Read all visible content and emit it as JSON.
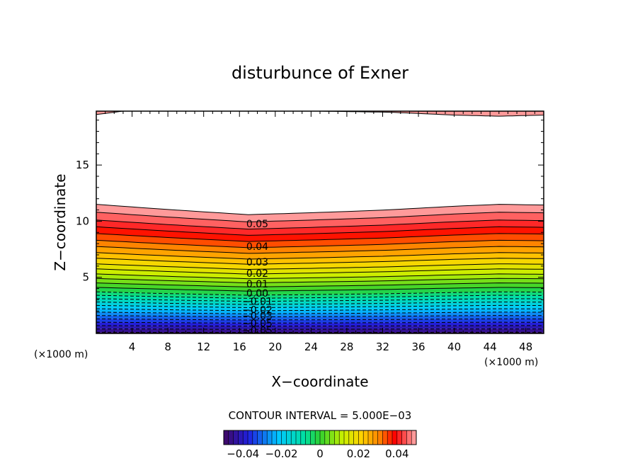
{
  "chart_data": {
    "type": "contour",
    "title": "disturbunce of Exner",
    "xlabel": "X−coordinate",
    "ylabel": "Z−coordinate",
    "x_unit_label": "(×1000 m)",
    "x_unit_label_right": "(×1000 m)",
    "xlim": [
      0,
      50
    ],
    "ylim": [
      0,
      19.8
    ],
    "x_ticks": [
      4,
      8,
      12,
      16,
      20,
      24,
      28,
      32,
      36,
      40,
      44,
      48
    ],
    "x_tick_labels": [
      "4",
      "8",
      "12",
      "16",
      "20",
      "24",
      "28",
      "32",
      "36",
      "40",
      "44",
      "48"
    ],
    "y_ticks": [
      5,
      10,
      15
    ],
    "y_tick_labels": [
      "5",
      "10",
      "15"
    ],
    "contour_interval_label": "CONTOUR INTERVAL = 5.000E−03",
    "contour_interval": 0.005,
    "contour_labels": [
      "0.05",
      "0.04",
      "0.03",
      "0.02",
      "0.01",
      "0.00",
      "−0.01",
      "−0.02",
      "−0.03",
      "−0.05",
      "−0.05"
    ],
    "contour_label_values": [
      0.05,
      0.04,
      0.03,
      0.02,
      0.01,
      0.0,
      -0.01,
      -0.02,
      -0.03,
      -0.05,
      -0.05
    ],
    "contour_label_heights_km": [
      10.6,
      8.4,
      6.9,
      5.8,
      4.8,
      3.9,
      3.1,
      2.3,
      1.7,
      1.0,
      0.3
    ],
    "level_profile": {
      "x": [
        0,
        8,
        17,
        24,
        32,
        40,
        45,
        50
      ],
      "scale": [
        1.0,
        0.96,
        0.92,
        0.935,
        0.955,
        0.985,
        1.0,
        0.995
      ]
    },
    "level_heights_km": [
      0.1,
      0.4,
      0.7,
      1.0,
      1.3,
      1.6,
      1.9,
      2.2,
      2.5,
      2.8,
      3.1,
      3.4,
      3.7,
      4.1,
      4.5,
      4.9,
      5.3,
      5.75,
      6.2,
      6.7,
      7.2,
      7.75,
      8.3,
      8.9,
      9.5,
      10.1,
      10.8,
      11.5
    ],
    "upper_lobe": {
      "x": [
        0,
        3,
        15,
        25,
        33,
        40,
        45,
        50
      ],
      "bottom_km": [
        19.5,
        19.8,
        19.8,
        19.8,
        19.7,
        19.45,
        19.35,
        19.45
      ]
    },
    "colorbar": {
      "range": [
        -0.05,
        0.05
      ],
      "tick_values": [
        -0.04,
        -0.02,
        0,
        0.02,
        0.04
      ],
      "tick_labels": [
        "−0.04",
        "−0.02",
        "0",
        "0.02",
        "0.04"
      ]
    },
    "colors": {
      "low": "#3d0a6e",
      "mid_negative": "#00c8ff",
      "zero": "#2fd12f",
      "mid_positive": "#ffd200",
      "high": "#ff0000",
      "top": "#ff9a9a"
    }
  }
}
